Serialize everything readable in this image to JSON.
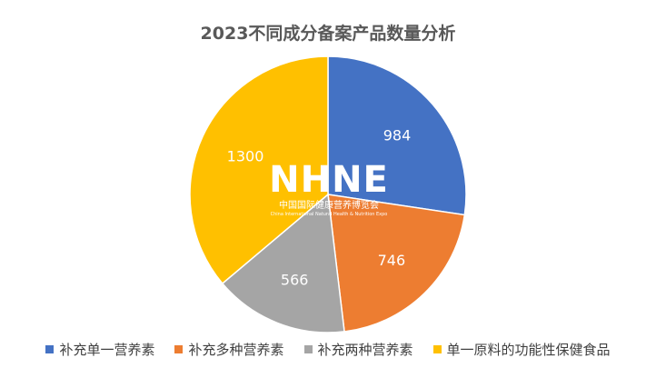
{
  "chart_data": {
    "type": "pie",
    "title": "2023不同成分备案产品数量分析",
    "categories": [
      "补充单一营养素",
      "补充多种营养素",
      "补充两种营养素",
      "单一原料的功能性保健食品"
    ],
    "values": [
      984,
      746,
      566,
      1300
    ],
    "colors": [
      "#4472C4",
      "#ED7D31",
      "#A5A5A5",
      "#FFC000"
    ],
    "legend": "bottom",
    "data_labels": true
  },
  "watermark": {
    "logo": "NHNE",
    "name_cn": "中国国际健康营养博览会",
    "name_en": "China International Natural Health & Nutrition Expo"
  }
}
